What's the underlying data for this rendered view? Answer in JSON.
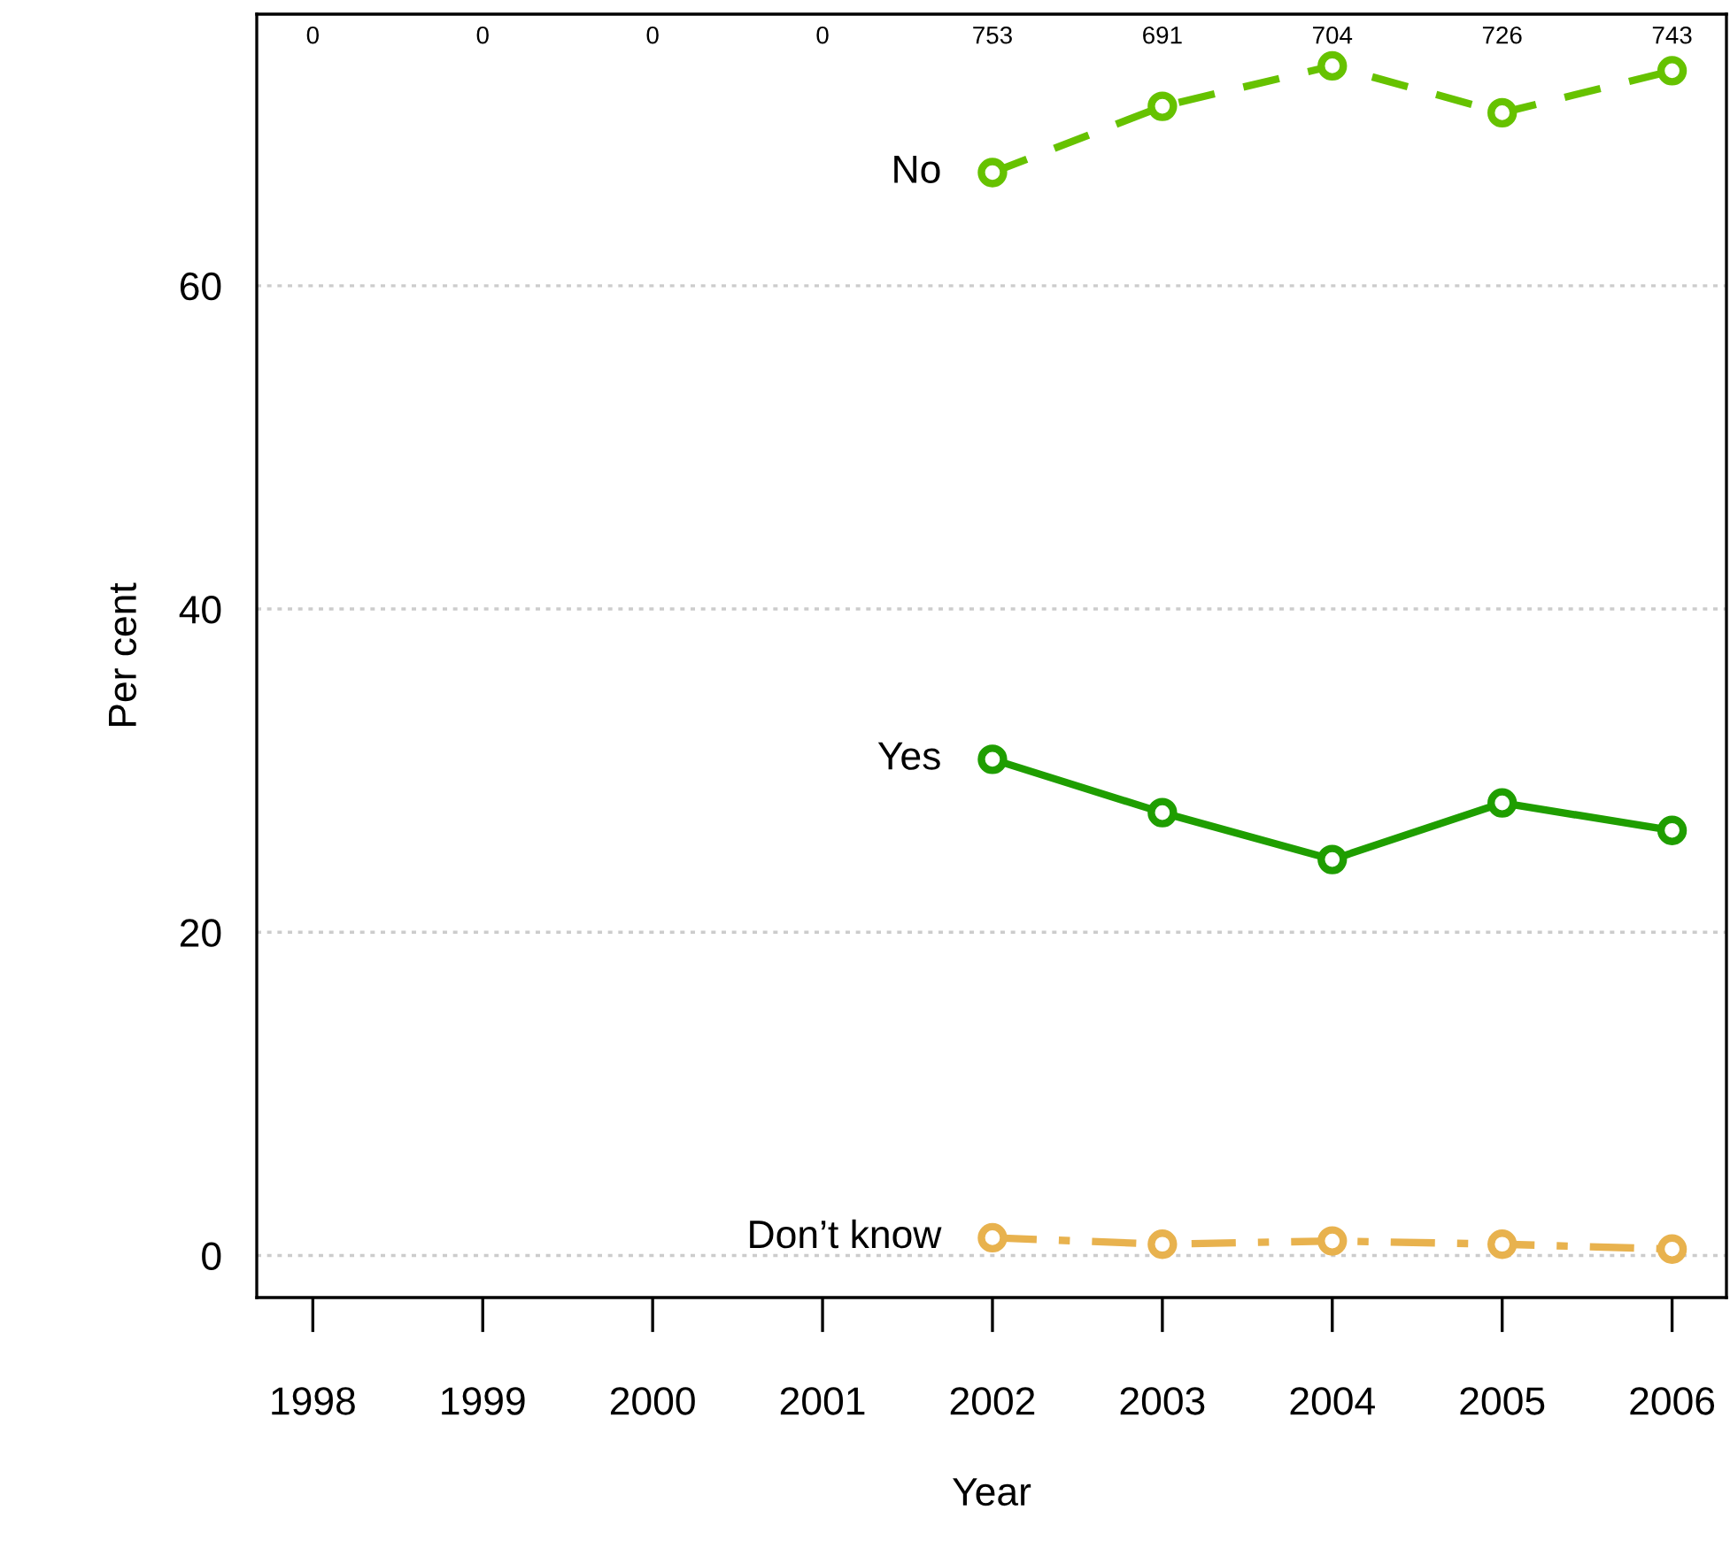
{
  "chart_data": {
    "type": "line",
    "xlabel": "Year",
    "ylabel": "Per cent",
    "x": [
      2002,
      2003,
      2004,
      2005,
      2006
    ],
    "series": [
      {
        "name": "No",
        "color": "#66c200",
        "values": [
          67.0,
          71.1,
          73.6,
          70.7,
          73.3
        ],
        "line_style": "dashed"
      },
      {
        "name": "Yes",
        "color": "#1f9e00",
        "values": [
          30.7,
          27.4,
          24.5,
          28.0,
          26.3
        ],
        "line_style": "solid"
      },
      {
        "name": "Don’t know",
        "color": "#e8b24e",
        "values": [
          1.1,
          0.7,
          0.9,
          0.7,
          0.4
        ],
        "line_style": "dashdot"
      }
    ],
    "marker": "circle",
    "xlim": [
      1997.67,
      2006.32
    ],
    "ylim": [
      -2.6,
      76.8
    ],
    "xticks": [
      1998,
      1999,
      2000,
      2001,
      2002,
      2003,
      2004,
      2005,
      2006
    ],
    "yticks": [
      0,
      20,
      40,
      60
    ],
    "grid": "y",
    "legend": false,
    "annotations": [
      "0",
      "0",
      "0",
      "0",
      "753",
      "691",
      "704",
      "726",
      "743"
    ]
  }
}
